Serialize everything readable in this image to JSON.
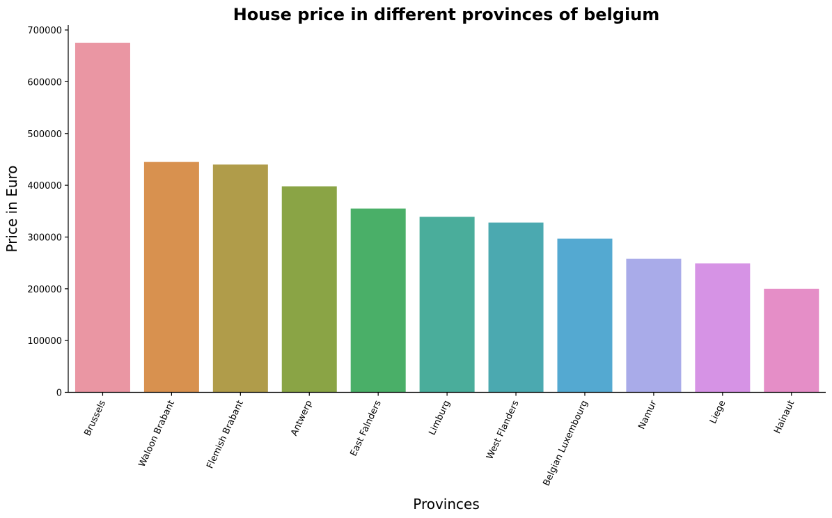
{
  "chart_data": {
    "type": "bar",
    "title": "House price in different provinces of belgium",
    "xlabel": "Provinces",
    "ylabel": "Price in Euro",
    "categories": [
      "Brussels",
      "Waloon Brabant",
      "Flemish Brabant",
      "Antwerp",
      "East Falnders",
      "Limburg",
      "West Flanders",
      "Belgian Luxembourg",
      "Namur",
      "Liege",
      "Hainaut"
    ],
    "values": [
      675000,
      445000,
      440000,
      398000,
      355000,
      339000,
      328000,
      297000,
      258000,
      249000,
      200000
    ],
    "colors": [
      "#EA96A3",
      "#D8914F",
      "#B09C4A",
      "#8AA445",
      "#4AAF68",
      "#4AAD9B",
      "#4BA9B0",
      "#54A9D1",
      "#A9ABE9",
      "#D693E5",
      "#E58EC7"
    ],
    "yticks": [
      "0",
      "100000",
      "200000",
      "300000",
      "400000",
      "500000",
      "600000",
      "700000"
    ],
    "ylim": [
      0,
      710000
    ],
    "grid": false,
    "legend": "none"
  }
}
